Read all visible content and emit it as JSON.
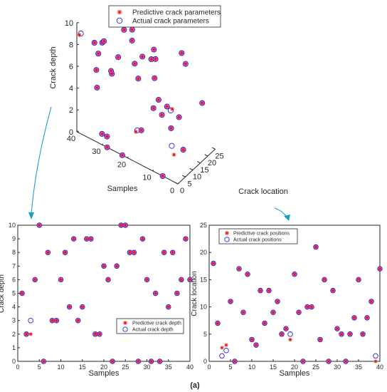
{
  "figure_label": "(a)",
  "colors": {
    "predicted": "#ee1111",
    "actual": "#2020e0",
    "overlap_fill": "#e080c8",
    "arrow": "#1aa0c8"
  },
  "chart_data": [
    {
      "type": "scatter3d",
      "xlabel": "Crack location",
      "ylabel": "Samples",
      "zlabel": "Crack depth",
      "xlim": [
        0,
        25
      ],
      "ylim": [
        0,
        40
      ],
      "zlim": [
        0,
        10
      ],
      "x_ticks": [
        "0",
        "5",
        "10",
        "15",
        "20",
        "25"
      ],
      "y_ticks": [
        "0",
        "10",
        "20",
        "30",
        "40"
      ],
      "z_ticks": [
        "0",
        "2",
        "4",
        "6",
        "8",
        "10"
      ],
      "legend": {
        "placement": "top",
        "entries": [
          "Predictive crack parameters",
          "Actual crack parameters"
        ]
      },
      "series": [
        {
          "name": "Predictive crack parameters",
          "marker": "star"
        },
        {
          "name": "Actual crack parameters",
          "marker": "circle"
        }
      ]
    },
    {
      "type": "scatter",
      "xlabel": "Samples",
      "ylabel": "Crack depth",
      "xlim": [
        0,
        40
      ],
      "ylim": [
        0,
        10
      ],
      "x_ticks": [
        "0",
        "5",
        "10",
        "15",
        "20",
        "25",
        "30",
        "35",
        "40"
      ],
      "y_ticks": [
        "0",
        "1",
        "2",
        "3",
        "4",
        "5",
        "6",
        "7",
        "8",
        "9",
        "10"
      ],
      "legend": {
        "placement": "bottom-right",
        "entries": [
          "Predictive crack depth",
          "Actual crack depth"
        ]
      },
      "x": [
        1,
        2,
        3,
        4,
        5,
        6,
        7,
        8,
        9,
        10,
        11,
        12,
        13,
        14,
        15,
        16,
        17,
        18,
        19,
        20,
        21,
        22,
        23,
        24,
        25,
        26,
        27,
        28,
        29,
        30,
        31,
        32,
        33,
        34,
        35,
        36,
        37,
        38,
        39,
        40
      ],
      "series": [
        {
          "name": "Predictive crack depth",
          "marker": "star",
          "values": [
            5,
            2,
            2,
            6,
            10,
            0,
            8,
            3,
            3,
            6,
            8,
            4,
            9,
            3,
            4,
            9,
            9,
            2,
            2,
            7,
            6,
            0,
            7,
            10,
            10,
            8,
            8,
            0,
            9,
            6,
            0,
            5,
            0,
            8,
            4,
            8,
            5,
            6,
            9,
            6
          ]
        },
        {
          "name": "Actual crack depth",
          "marker": "circle",
          "values": [
            5,
            2,
            3,
            6,
            10,
            0,
            8,
            3,
            3,
            6,
            8,
            4,
            9,
            3,
            4,
            9,
            9,
            2,
            2,
            7,
            6,
            0,
            7,
            10,
            10,
            8,
            8,
            0,
            9,
            6,
            0,
            5,
            0,
            8,
            4,
            8,
            5,
            6,
            9,
            6
          ]
        }
      ]
    },
    {
      "type": "scatter",
      "xlabel": "Samples",
      "ylabel": "Crack location",
      "xlim": [
        0,
        40
      ],
      "ylim": [
        0,
        25
      ],
      "x_ticks": [
        "0",
        "5",
        "10",
        "15",
        "20",
        "25",
        "30",
        "35",
        "40"
      ],
      "y_ticks": [
        "0",
        "5",
        "10",
        "15",
        "20",
        "25"
      ],
      "legend": {
        "placement": "top-left",
        "entries": [
          "Predictive crack positions",
          "Actual crack positions"
        ]
      },
      "x": [
        1,
        2,
        3,
        4,
        5,
        6,
        7,
        8,
        9,
        10,
        11,
        12,
        13,
        14,
        15,
        16,
        17,
        18,
        19,
        20,
        21,
        22,
        23,
        24,
        25,
        26,
        27,
        28,
        29,
        30,
        31,
        32,
        33,
        34,
        35,
        36,
        37,
        38,
        39,
        40
      ],
      "series": [
        {
          "name": "Predictive crack positions",
          "marker": "star",
          "values": [
            18,
            7,
            2.5,
            3,
            11,
            0,
            17,
            9,
            16,
            4,
            3,
            13,
            7,
            13,
            9,
            11,
            5,
            6,
            4,
            16,
            9,
            0,
            10,
            10,
            21,
            4,
            15,
            0,
            13,
            6,
            5,
            0,
            5,
            8,
            15,
            5,
            8,
            11,
            0,
            17
          ]
        },
        {
          "name": "Actual crack positions",
          "marker": "circle",
          "values": [
            18,
            7,
            1,
            2,
            11,
            0,
            17,
            9,
            16,
            4,
            3,
            13,
            7,
            13,
            9,
            11,
            5,
            6,
            5,
            16,
            9,
            0,
            10,
            10,
            21,
            4,
            15,
            0,
            13,
            6,
            5,
            0,
            5,
            8,
            15,
            5,
            8,
            11,
            1,
            17
          ]
        }
      ]
    }
  ]
}
